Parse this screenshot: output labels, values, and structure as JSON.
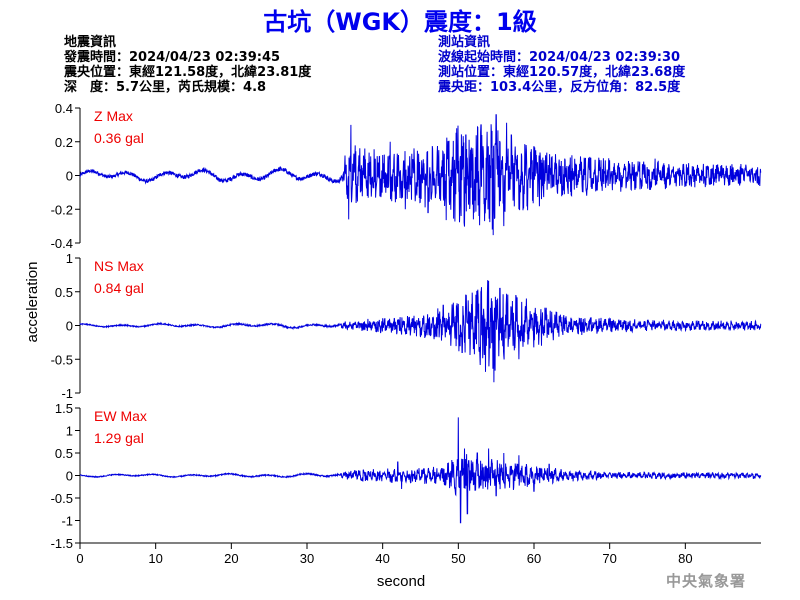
{
  "title": "古坑（WGK）震度：1級",
  "quake_info": {
    "heading": "地震資訊",
    "origin_time": "發震時間：2024/04/23 02:39:45",
    "epicenter": "震央位置：東經121.58度，北緯23.81度",
    "depth_magnitude": "深　度：5.7公里，芮氏規模：4.8"
  },
  "station_info": {
    "heading": "測站資訊",
    "onset_time": "波線起始時間：2024/04/23 02:39:30",
    "location": "測站位置：東經120.57度，北緯23.68度",
    "distance_azimuth": "震央距：103.4公里，反方位角：82.5度"
  },
  "footer": "中央氣象署",
  "colors": {
    "trace": "#0000dd",
    "max_label": "#ee0000",
    "title": "#0000ee",
    "station_info": "#0000cc"
  },
  "chart_data": {
    "type": "line",
    "xlabel": "second",
    "ylabel": "acceleration",
    "xlim": [
      0,
      90
    ],
    "x_ticks": [
      0,
      10,
      20,
      30,
      40,
      50,
      60,
      70,
      80
    ],
    "panels": [
      {
        "name": "Z",
        "max_label": "Z Max",
        "max_value": "0.36 gal",
        "ylim": [
          -0.4,
          0.4
        ],
        "y_ticks": [
          -0.4,
          -0.2,
          0,
          0.2,
          0.4
        ],
        "envelope": [
          [
            0,
            0.04
          ],
          [
            20,
            0.05
          ],
          [
            34.8,
            0.05
          ],
          [
            35,
            0.14
          ],
          [
            36,
            0.17
          ],
          [
            40,
            0.14
          ],
          [
            45,
            0.16
          ],
          [
            50,
            0.28
          ],
          [
            52,
            0.3
          ],
          [
            54,
            0.32
          ],
          [
            55,
            0.36
          ],
          [
            56,
            0.3
          ],
          [
            58,
            0.22
          ],
          [
            62,
            0.14
          ],
          [
            70,
            0.1
          ],
          [
            80,
            0.07
          ],
          [
            90,
            0.06
          ]
        ],
        "peaks": [
          [
            35.8,
            0.3
          ],
          [
            35.5,
            -0.26
          ],
          [
            41,
            0.2
          ],
          [
            43,
            -0.2
          ],
          [
            46,
            -0.22
          ],
          [
            51,
            0.24
          ],
          [
            52,
            -0.26
          ],
          [
            53,
            0.3
          ],
          [
            54.5,
            -0.32
          ],
          [
            55,
            0.36
          ],
          [
            56,
            -0.3
          ],
          [
            57,
            0.24
          ],
          [
            58,
            -0.2
          ],
          [
            60,
            0.17
          ],
          [
            61,
            -0.14
          ],
          [
            65,
            0.12
          ],
          [
            70,
            0.09
          ],
          [
            76,
            0.1
          ]
        ]
      },
      {
        "name": "NS",
        "max_label": "NS Max",
        "max_value": "0.84 gal",
        "ylim": [
          -1,
          1
        ],
        "y_ticks": [
          -1,
          -0.5,
          0,
          0.5,
          1
        ],
        "envelope": [
          [
            0,
            0.03
          ],
          [
            20,
            0.04
          ],
          [
            34,
            0.05
          ],
          [
            36,
            0.06
          ],
          [
            38,
            0.1
          ],
          [
            42,
            0.12
          ],
          [
            46,
            0.18
          ],
          [
            49,
            0.3
          ],
          [
            51,
            0.45
          ],
          [
            53,
            0.55
          ],
          [
            54,
            0.68
          ],
          [
            55,
            0.6
          ],
          [
            57,
            0.45
          ],
          [
            60,
            0.3
          ],
          [
            65,
            0.15
          ],
          [
            70,
            0.1
          ],
          [
            80,
            0.07
          ],
          [
            90,
            0.07
          ]
        ],
        "peaks": [
          [
            48,
            0.3
          ],
          [
            49,
            -0.3
          ],
          [
            50.5,
            -0.4
          ],
          [
            51,
            0.45
          ],
          [
            52,
            -0.35
          ],
          [
            53,
            0.5
          ],
          [
            54,
            0.66
          ],
          [
            54.7,
            -0.84
          ],
          [
            55.5,
            0.55
          ],
          [
            56,
            -0.45
          ],
          [
            58,
            -0.5
          ],
          [
            59,
            0.4
          ],
          [
            61,
            -0.3
          ],
          [
            63,
            0.2
          ]
        ]
      },
      {
        "name": "EW",
        "max_label": "EW Max",
        "max_value": "1.29 gal",
        "ylim": [
          -1.5,
          1.5
        ],
        "y_ticks": [
          -1.5,
          -1,
          -0.5,
          0,
          0.5,
          1,
          1.5
        ],
        "envelope": [
          [
            0,
            0.04
          ],
          [
            20,
            0.05
          ],
          [
            34,
            0.06
          ],
          [
            36,
            0.12
          ],
          [
            40,
            0.14
          ],
          [
            44,
            0.15
          ],
          [
            48,
            0.2
          ],
          [
            50,
            0.5
          ],
          [
            51,
            0.45
          ],
          [
            52,
            0.38
          ],
          [
            55,
            0.35
          ],
          [
            58,
            0.3
          ],
          [
            60,
            0.22
          ],
          [
            65,
            0.12
          ],
          [
            70,
            0.08
          ],
          [
            80,
            0.07
          ],
          [
            90,
            0.06
          ]
        ],
        "peaks": [
          [
            42,
            0.3
          ],
          [
            42.5,
            -0.3
          ],
          [
            50,
            1.29
          ],
          [
            50.3,
            -1.05
          ],
          [
            50.8,
            0.6
          ],
          [
            51.2,
            -0.85
          ],
          [
            52.5,
            0.5
          ],
          [
            54,
            0.6
          ],
          [
            55,
            -0.45
          ],
          [
            56,
            0.5
          ],
          [
            58,
            0.45
          ],
          [
            60,
            -0.35
          ],
          [
            62,
            0.25
          ]
        ]
      }
    ]
  }
}
